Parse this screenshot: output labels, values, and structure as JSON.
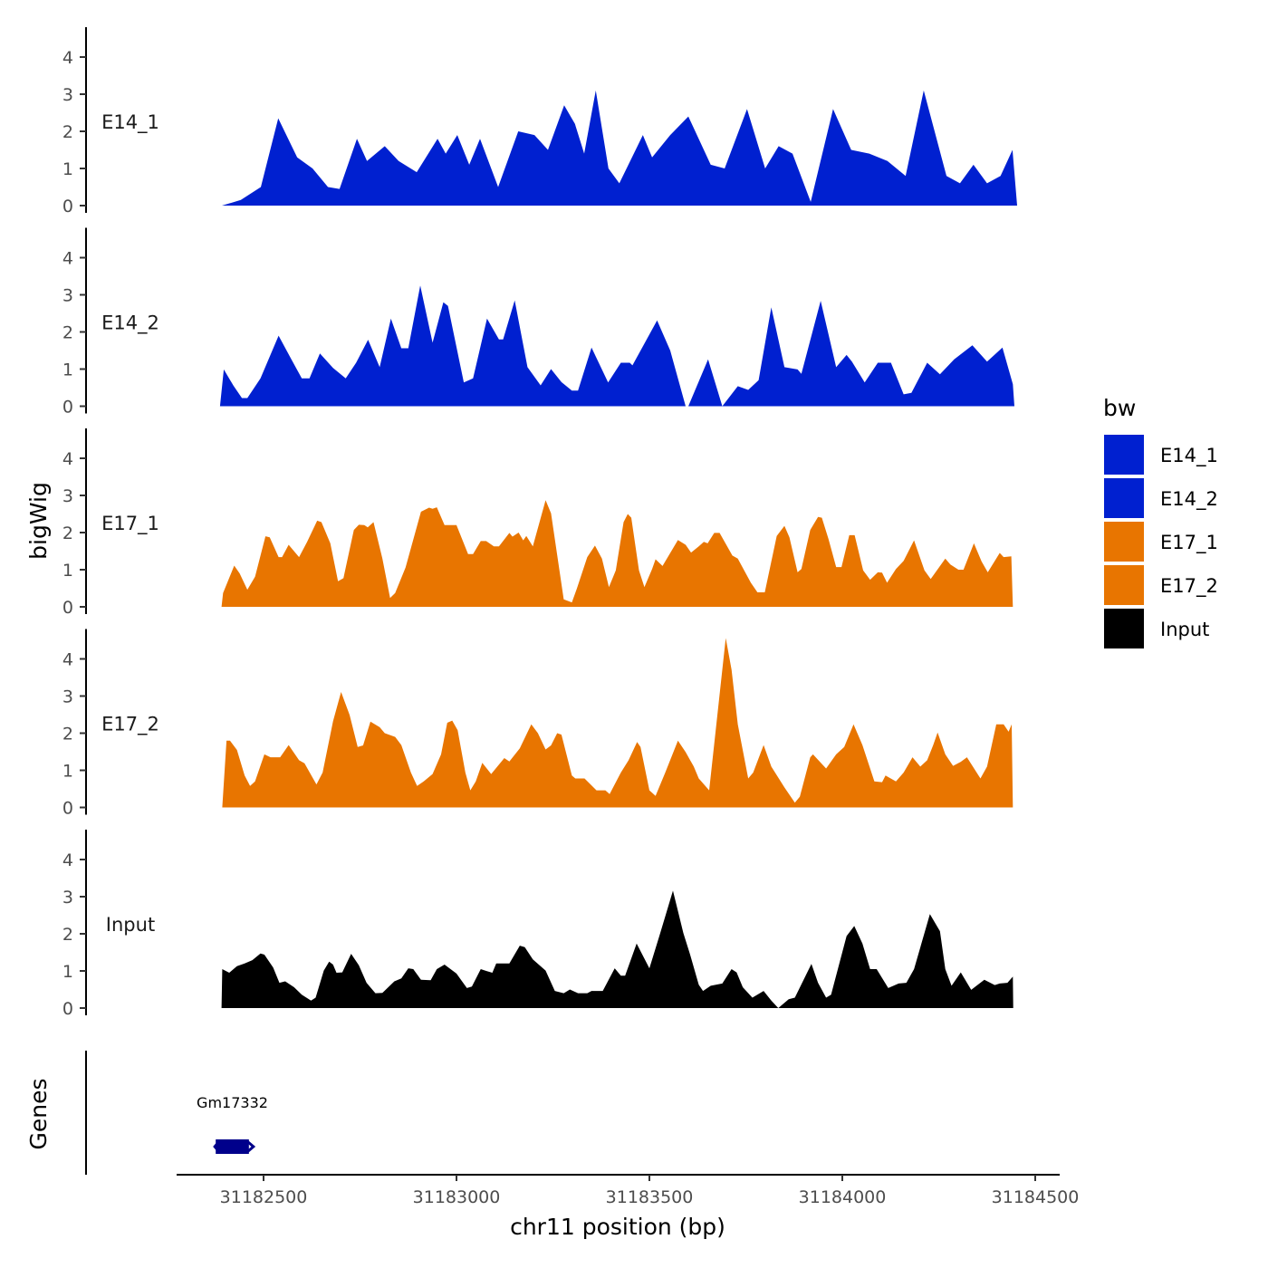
{
  "chart_data": {
    "type": "area",
    "xlabel": "chr11 position (bp)",
    "ylabel": "bigWig",
    "gene_track_label": "Genes",
    "xlim": [
      31182250,
      31184560
    ],
    "ylim": [
      0,
      4.8
    ],
    "x_ticks": [
      31182500,
      31183000,
      31183500,
      31184000,
      31184500
    ],
    "x_tick_labels": [
      "31182500",
      "31183000",
      "31183500",
      "31184000",
      "31184500"
    ],
    "y_ticks": [
      0,
      1,
      2,
      3,
      4
    ],
    "y_tick_labels": [
      "0",
      "1",
      "2",
      "3",
      "4"
    ],
    "legend": {
      "title": "bw",
      "position": "right",
      "entries": [
        {
          "label": "E14_1",
          "color": "#0020D0"
        },
        {
          "label": "E14_2",
          "color": "#0020D0"
        },
        {
          "label": "E17_1",
          "color": "#E87500"
        },
        {
          "label": "E17_2",
          "color": "#E87500"
        },
        {
          "label": "Input",
          "color": "#000000"
        }
      ]
    },
    "series": [
      {
        "name": "E14_1",
        "color": "#0020D0",
        "x": [
          31182392,
          31182441,
          31182493,
          31182538,
          31182587,
          31182627,
          31182667,
          31182697,
          31182742,
          31182768,
          31182814,
          31182850,
          31182897,
          31182951,
          31182972,
          31183002,
          31183033,
          31183061,
          31183108,
          31183160,
          31183202,
          31183237,
          31183279,
          31183307,
          31183331,
          31183361,
          31183394,
          31183422,
          31183483,
          31183507,
          31183554,
          31183601,
          31183659,
          31183695,
          31183753,
          31183800,
          31183835,
          31183871,
          31183918,
          31183976,
          31184023,
          31184070,
          31184117,
          31184164,
          31184211,
          31184270,
          31184305,
          31184340,
          31184375,
          31184410,
          31184441,
          31184453
        ],
        "y": [
          0,
          0.15,
          0.5,
          2.35,
          1.3,
          1.0,
          0.5,
          0.45,
          1.8,
          1.2,
          1.6,
          1.2,
          0.9,
          1.8,
          1.4,
          1.9,
          1.1,
          1.8,
          0.5,
          2.0,
          1.9,
          1.5,
          2.7,
          2.2,
          1.4,
          3.1,
          1.0,
          0.6,
          1.9,
          1.3,
          1.9,
          2.4,
          1.1,
          1.0,
          2.6,
          1.0,
          1.6,
          1.4,
          0.1,
          2.6,
          1.5,
          1.4,
          1.2,
          0.8,
          3.1,
          0.8,
          0.6,
          1.1,
          0.6,
          0.8,
          1.5,
          0
        ]
      },
      {
        "name": "E14_2",
        "color": "#0020D0",
        "x": [
          31182387,
          31182397,
          31182422,
          31182444,
          31182458,
          31182492,
          31182539,
          31182572,
          31182599,
          31182619,
          31182646,
          31182680,
          31182713,
          31182740,
          31182771,
          31182801,
          31182830,
          31182857,
          31182875,
          31182906,
          31182938,
          31182966,
          31182978,
          31183019,
          31183043,
          31183079,
          31183110,
          31183121,
          31183151,
          31183184,
          31183218,
          31183245,
          31183272,
          31183299,
          31183315,
          31183350,
          31183393,
          31183426,
          31183449,
          31183456,
          31183520,
          31183554,
          31183594,
          31183601,
          31183652,
          31183689,
          31183729,
          31183756,
          31183783,
          31183816,
          31183850,
          31183884,
          31183894,
          31183944,
          31183984,
          31184011,
          31184025,
          31184058,
          31184092,
          31184126,
          31184159,
          31184179,
          31184220,
          31184253,
          31184290,
          31184337,
          31184375,
          31184415,
          31184442,
          31184446
        ],
        "y": [
          0,
          0.99,
          0.55,
          0.22,
          0.22,
          0.75,
          1.9,
          1.26,
          0.75,
          0.75,
          1.42,
          1.03,
          0.75,
          1.17,
          1.79,
          1.05,
          2.36,
          1.56,
          1.56,
          3.25,
          1.71,
          2.8,
          2.7,
          0.64,
          0.75,
          2.36,
          1.8,
          1.8,
          2.85,
          1.05,
          0.56,
          1.0,
          0.65,
          0.42,
          0.42,
          1.58,
          0.64,
          1.17,
          1.17,
          1.1,
          2.31,
          1.5,
          0,
          0,
          1.26,
          0,
          0.54,
          0.44,
          0.7,
          2.66,
          1.05,
          0.99,
          0.87,
          2.84,
          1.05,
          1.38,
          1.2,
          0.64,
          1.17,
          1.17,
          0.32,
          0.36,
          1.17,
          0.86,
          1.26,
          1.64,
          1.2,
          1.58,
          0.59,
          0
        ]
      },
      {
        "name": "E17_1",
        "color": "#E87500",
        "x": [
          31182391,
          31182395,
          31182424,
          31182438,
          31182458,
          31182478,
          31182505,
          31182516,
          31182539,
          31182548,
          31182565,
          31182592,
          31182613,
          31182639,
          31182650,
          31182673,
          31182693,
          31182707,
          31182734,
          31182747,
          31182761,
          31182770,
          31182785,
          31182808,
          31182828,
          31182841,
          31182868,
          31182908,
          31182929,
          31182938,
          31182949,
          31182969,
          31183000,
          31183030,
          31183043,
          31183063,
          31183077,
          31183097,
          31183110,
          31183137,
          31183145,
          31183161,
          31183173,
          31183181,
          31183198,
          31183231,
          31183245,
          31183278,
          31183299,
          31183312,
          31183339,
          31183359,
          31183377,
          31183395,
          31183413,
          31183433,
          31183444,
          31183453,
          31183473,
          31183487,
          31183507,
          31183516,
          31183534,
          31183574,
          31183594,
          31183608,
          31183628,
          31183641,
          31183651,
          31183668,
          31183682,
          31183715,
          31183729,
          31183763,
          31183780,
          31183799,
          31183830,
          31183850,
          31183863,
          31183884,
          31183894,
          31183917,
          31183937,
          31183947,
          31183964,
          31183984,
          31183998,
          31184018,
          31184032,
          31184054,
          31184072,
          31184092,
          31184103,
          31184116,
          31184139,
          31184159,
          31184186,
          31184213,
          31184229,
          31184267,
          31184280,
          31184301,
          31184314,
          31184341,
          31184361,
          31184377,
          31184408,
          31184418,
          31184438,
          31184442
        ],
        "y": [
          0,
          0.37,
          1.11,
          0.9,
          0.46,
          0.81,
          1.9,
          1.87,
          1.34,
          1.34,
          1.67,
          1.34,
          1.75,
          2.32,
          2.28,
          1.71,
          0.69,
          0.77,
          2.07,
          2.21,
          2.2,
          2.14,
          2.28,
          1.3,
          0.24,
          0.37,
          1.06,
          2.56,
          2.67,
          2.64,
          2.68,
          2.2,
          2.2,
          1.42,
          1.42,
          1.77,
          1.77,
          1.63,
          1.63,
          1.99,
          1.89,
          2.0,
          1.79,
          1.91,
          1.63,
          2.87,
          2.52,
          0.2,
          0.12,
          0.49,
          1.34,
          1.65,
          1.3,
          0.53,
          0.98,
          2.28,
          2.5,
          2.4,
          0.98,
          0.53,
          1.02,
          1.28,
          1.1,
          1.8,
          1.67,
          1.46,
          1.63,
          1.75,
          1.71,
          1.99,
          1.99,
          1.38,
          1.3,
          0.65,
          0.39,
          0.39,
          1.91,
          2.18,
          1.87,
          0.93,
          1.02,
          2.07,
          2.42,
          2.4,
          1.83,
          1.07,
          1.07,
          1.93,
          1.93,
          0.98,
          0.73,
          0.93,
          0.92,
          0.65,
          1.02,
          1.24,
          1.79,
          0.98,
          0.75,
          1.3,
          1.14,
          1.0,
          1.0,
          1.71,
          1.22,
          0.93,
          1.45,
          1.34,
          1.36,
          0
        ]
      },
      {
        "name": "E17_2",
        "color": "#E87500",
        "x": [
          31182393,
          31182404,
          31182413,
          31182431,
          31182451,
          31182465,
          31182478,
          31182502,
          31182518,
          31182543,
          31182565,
          31182592,
          31182606,
          31182637,
          31182653,
          31182680,
          31182701,
          31182723,
          31182744,
          31182758,
          31182777,
          31182801,
          31182814,
          31182841,
          31182857,
          31182882,
          31182898,
          31182915,
          31182938,
          31182960,
          31182976,
          31182989,
          31183003,
          31183023,
          31183036,
          31183050,
          31183067,
          31183090,
          31183124,
          31183137,
          31183164,
          31183194,
          31183211,
          31183231,
          31183245,
          31183261,
          31183272,
          31183299,
          31183308,
          31183332,
          31183363,
          31183386,
          31183397,
          31183426,
          31183446,
          31183468,
          31183477,
          31183500,
          31183516,
          31183541,
          31183574,
          31183594,
          31183615,
          31183628,
          31183655,
          31183698,
          31183713,
          31183729,
          31183756,
          31183769,
          31183796,
          31183816,
          31183850,
          31183877,
          31183890,
          31183917,
          31183924,
          31183958,
          31183984,
          31184005,
          31184029,
          31184052,
          31184083,
          31184103,
          31184112,
          31184139,
          31184159,
          31184182,
          31184202,
          31184220,
          31184236,
          31184247,
          31184267,
          31184287,
          31184307,
          31184323,
          31184358,
          31184375,
          31184399,
          31184418,
          31184431,
          31184439,
          31184442
        ],
        "y": [
          0,
          1.8,
          1.8,
          1.55,
          0.86,
          0.58,
          0.7,
          1.43,
          1.35,
          1.35,
          1.68,
          1.27,
          1.19,
          0.62,
          0.94,
          2.32,
          3.11,
          2.49,
          1.63,
          1.67,
          2.31,
          2.16,
          2.0,
          1.9,
          1.68,
          0.94,
          0.58,
          0.7,
          0.9,
          1.43,
          2.28,
          2.34,
          2.08,
          0.94,
          0.46,
          0.7,
          1.2,
          0.9,
          1.33,
          1.24,
          1.59,
          2.24,
          2.0,
          1.56,
          1.67,
          2.0,
          1.96,
          0.86,
          0.78,
          0.78,
          0.46,
          0.46,
          0.36,
          0.94,
          1.27,
          1.76,
          1.63,
          0.46,
          0.31,
          0.94,
          1.8,
          1.49,
          1.1,
          0.78,
          0.46,
          4.56,
          3.71,
          2.24,
          0.78,
          0.94,
          1.68,
          1.1,
          0.54,
          0.13,
          0.29,
          1.35,
          1.43,
          1.05,
          1.43,
          1.63,
          2.24,
          1.68,
          0.7,
          0.68,
          0.86,
          0.7,
          0.94,
          1.35,
          1.1,
          1.27,
          1.69,
          2.02,
          1.43,
          1.12,
          1.23,
          1.35,
          0.78,
          1.1,
          2.24,
          2.24,
          2.04,
          2.24,
          0
        ]
      },
      {
        "name": "Input",
        "color": "#000000",
        "x": [
          31182391,
          31182393,
          31182411,
          31182431,
          31182451,
          31182471,
          31182492,
          31182502,
          31182525,
          31182541,
          31182556,
          31182579,
          31182599,
          31182623,
          31182635,
          31182656,
          31182670,
          31182680,
          31182689,
          31182704,
          31182727,
          31182747,
          31182767,
          31182790,
          31182808,
          31182839,
          31182857,
          31182875,
          31182888,
          31182908,
          31182933,
          31182949,
          31182969,
          31183000,
          31183027,
          31183040,
          31183063,
          31183077,
          31183093,
          31183103,
          31183137,
          31183164,
          31183177,
          31183198,
          31183231,
          31183255,
          31183278,
          31183294,
          31183315,
          31183339,
          31183350,
          31183379,
          31183410,
          31183426,
          31183437,
          31183467,
          31183500,
          31183527,
          31183561,
          31183588,
          31183605,
          31183628,
          31183639,
          31183659,
          31183689,
          31183713,
          31183726,
          31183742,
          31183767,
          31183796,
          31183816,
          31183834,
          31183861,
          31183877,
          31183920,
          31183937,
          31183958,
          31183971,
          31184011,
          31184031,
          31184052,
          31184072,
          31184089,
          31184119,
          31184146,
          31184166,
          31184186,
          31184227,
          31184253,
          31184267,
          31184283,
          31184307,
          31184334,
          31184368,
          31184395,
          31184408,
          31184428,
          31184442,
          31184443
        ],
        "y": [
          0,
          1.05,
          0.95,
          1.13,
          1.2,
          1.29,
          1.47,
          1.44,
          1.09,
          0.68,
          0.72,
          0.56,
          0.36,
          0.2,
          0.28,
          1.01,
          1.25,
          1.17,
          0.95,
          0.96,
          1.46,
          1.15,
          0.68,
          0.4,
          0.41,
          0.72,
          0.8,
          1.07,
          1.05,
          0.76,
          0.75,
          1.05,
          1.17,
          0.93,
          0.54,
          0.58,
          1.05,
          1.0,
          0.95,
          1.2,
          1.2,
          1.68,
          1.64,
          1.31,
          1.01,
          0.46,
          0.4,
          0.5,
          0.4,
          0.4,
          0.46,
          0.46,
          1.07,
          0.87,
          0.87,
          1.74,
          1.07,
          1.98,
          3.16,
          2.02,
          1.46,
          0.63,
          0.46,
          0.6,
          0.66,
          1.05,
          0.96,
          0.56,
          0.28,
          0.46,
          0.2,
          0,
          0.24,
          0.28,
          1.19,
          0.68,
          0.28,
          0.36,
          1.94,
          2.21,
          1.74,
          1.05,
          1.05,
          0.54,
          0.66,
          0.68,
          1.05,
          2.53,
          2.07,
          1.05,
          0.6,
          0.96,
          0.49,
          0.76,
          0.62,
          0.66,
          0.68,
          0.85,
          0
        ]
      }
    ],
    "genes": [
      {
        "name": "Gm17332",
        "start": 31182376,
        "end": 31182462,
        "strand": "-",
        "color": "#00008B"
      }
    ]
  }
}
